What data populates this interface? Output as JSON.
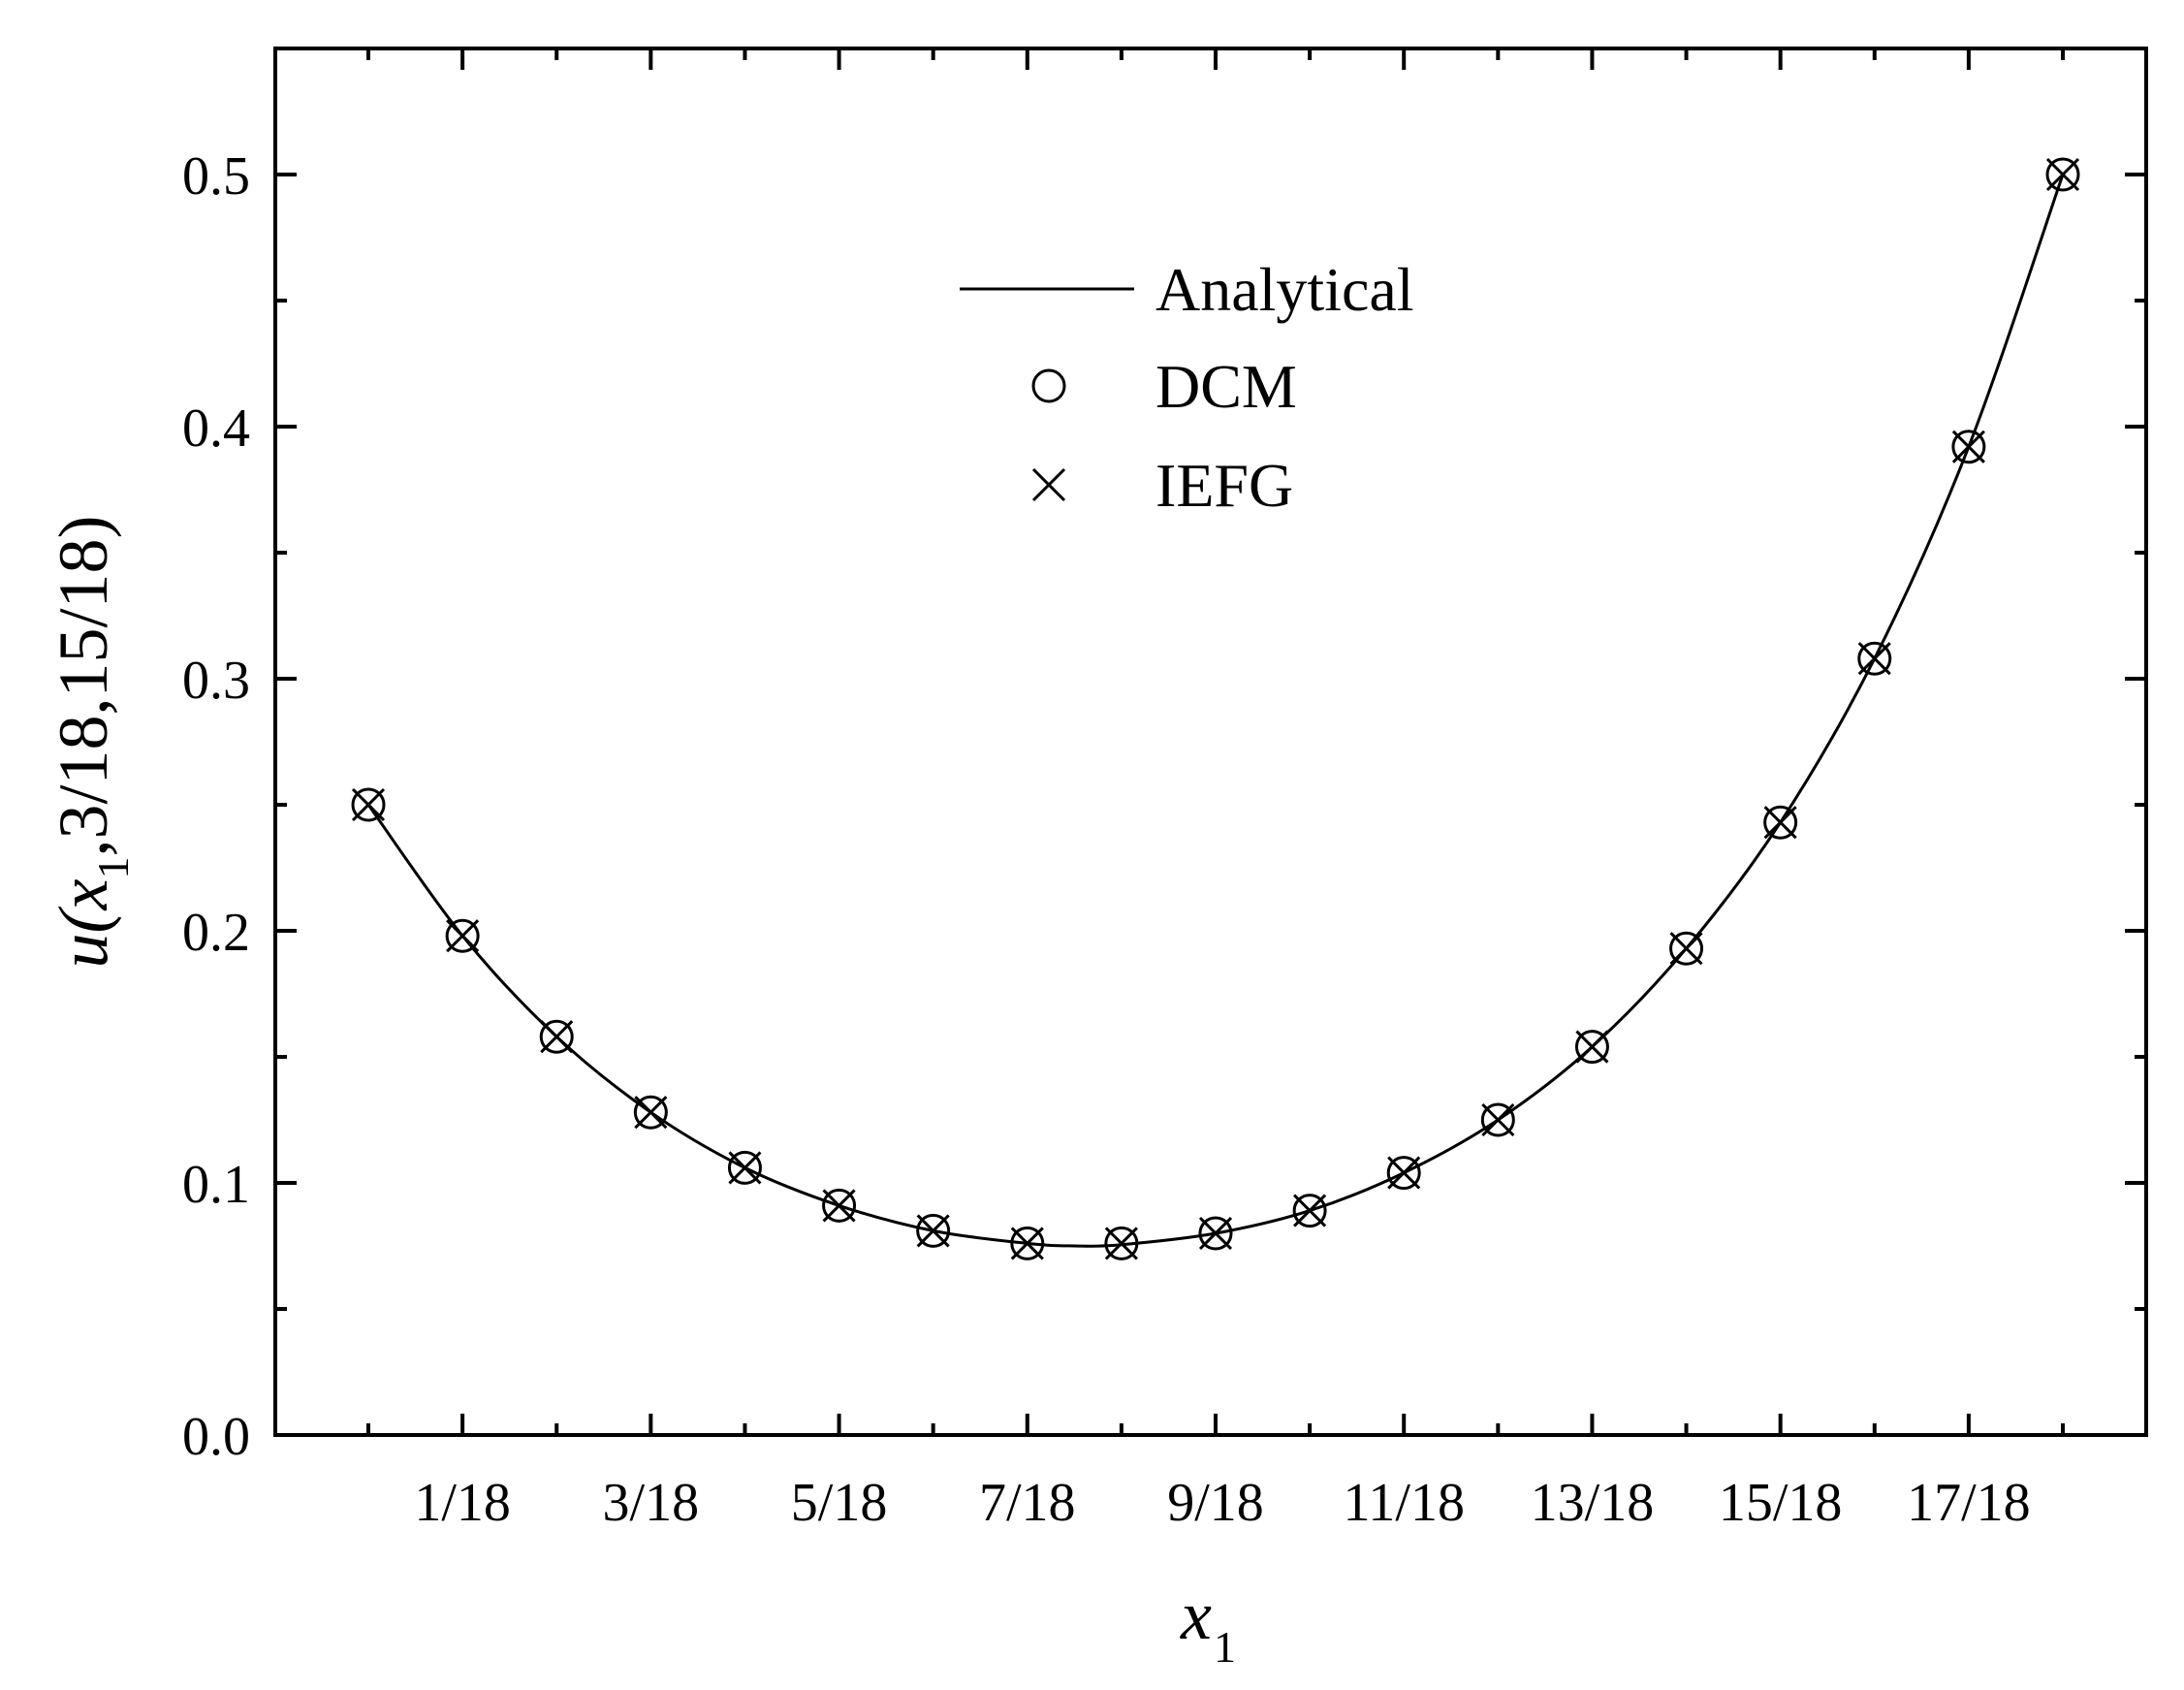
{
  "chart_data": {
    "type": "line",
    "title": "",
    "xlabel": {
      "main": "x",
      "sub": "1"
    },
    "ylabel": {
      "prefix": "u(",
      "var": "x",
      "sub": "1",
      "suffix": ",3/18,15/18)"
    },
    "xlim": [
      0,
      1.0
    ],
    "ylim": [
      0.0,
      0.55
    ],
    "x_ticks": [
      {
        "value": 0.05556,
        "label": "1/18"
      },
      {
        "value": 0.16667,
        "label": "3/18"
      },
      {
        "value": 0.27778,
        "label": "5/18"
      },
      {
        "value": 0.38889,
        "label": "7/18"
      },
      {
        "value": 0.5,
        "label": "9/18"
      },
      {
        "value": 0.61111,
        "label": "11/18"
      },
      {
        "value": 0.72222,
        "label": "13/18"
      },
      {
        "value": 0.83333,
        "label": "15/18"
      },
      {
        "value": 0.94444,
        "label": "17/18"
      }
    ],
    "x_minor_ticks": [
      0.0,
      0.11111,
      0.22222,
      0.33333,
      0.44444,
      0.55556,
      0.66667,
      0.77778,
      0.88889,
      1.0
    ],
    "y_ticks": [
      {
        "value": 0.0,
        "label": "0.0"
      },
      {
        "value": 0.1,
        "label": "0.1"
      },
      {
        "value": 0.2,
        "label": "0.2"
      },
      {
        "value": 0.3,
        "label": "0.3"
      },
      {
        "value": 0.4,
        "label": "0.4"
      },
      {
        "value": 0.5,
        "label": "0.5"
      }
    ],
    "y_minor_ticks": [
      0.05,
      0.15,
      0.25,
      0.35,
      0.45
    ],
    "grid": false,
    "legend_position": "top-center",
    "series": [
      {
        "name": "Analytical",
        "marker": "line",
        "x": [
          0.0,
          0.05556,
          0.11111,
          0.16667,
          0.22222,
          0.27778,
          0.33333,
          0.38889,
          0.41667,
          0.44444,
          0.5,
          0.55556,
          0.61111,
          0.66667,
          0.72222,
          0.77778,
          0.83333,
          0.88889,
          0.94444,
          1.0
        ],
        "y": [
          0.25,
          0.198,
          0.158,
          0.128,
          0.106,
          0.091,
          0.081,
          0.076,
          0.075,
          0.0755,
          0.08,
          0.089,
          0.104,
          0.125,
          0.154,
          0.193,
          0.243,
          0.308,
          0.392,
          0.5
        ]
      },
      {
        "name": "DCM",
        "marker": "circle",
        "x": [
          0.0,
          0.05556,
          0.11111,
          0.16667,
          0.22222,
          0.27778,
          0.33333,
          0.38889,
          0.44444,
          0.5,
          0.55556,
          0.61111,
          0.66667,
          0.72222,
          0.77778,
          0.83333,
          0.88889,
          0.94444,
          1.0
        ],
        "y": [
          0.25,
          0.198,
          0.158,
          0.128,
          0.106,
          0.091,
          0.081,
          0.076,
          0.076,
          0.08,
          0.089,
          0.104,
          0.125,
          0.154,
          0.193,
          0.243,
          0.308,
          0.392,
          0.5
        ]
      },
      {
        "name": "IEFG",
        "marker": "cross",
        "x": [
          0.0,
          0.05556,
          0.11111,
          0.16667,
          0.22222,
          0.27778,
          0.33333,
          0.38889,
          0.44444,
          0.5,
          0.55556,
          0.61111,
          0.66667,
          0.72222,
          0.77778,
          0.83333,
          0.88889,
          0.94444,
          1.0
        ],
        "y": [
          0.25,
          0.198,
          0.158,
          0.128,
          0.106,
          0.091,
          0.081,
          0.076,
          0.076,
          0.08,
          0.089,
          0.104,
          0.125,
          0.154,
          0.193,
          0.243,
          0.308,
          0.392,
          0.5
        ]
      }
    ]
  }
}
